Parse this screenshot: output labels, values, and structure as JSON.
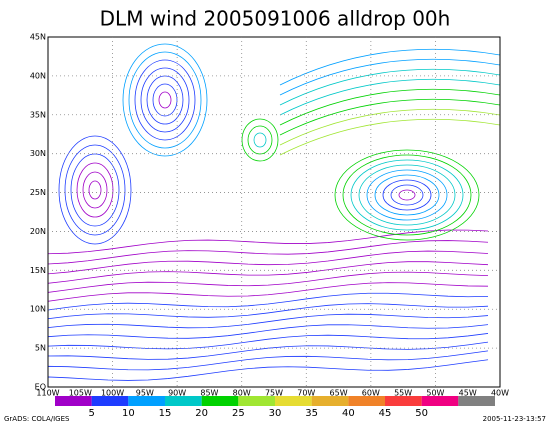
{
  "title": "DLM wind 2005091006 alldrop 00h",
  "map": {
    "lat_labels": [
      "EQ",
      "5N",
      "10N",
      "15N",
      "20N",
      "25N",
      "30N",
      "35N",
      "40N",
      "45N"
    ],
    "lon_labels": [
      "110W",
      "105W",
      "100W",
      "95W",
      "90W",
      "85W",
      "80W",
      "75W",
      "70W",
      "65W",
      "60W",
      "55W",
      "50W",
      "45W",
      "40W"
    ]
  },
  "colorbar": {
    "colors": [
      "#a000c8",
      "#1e3cff",
      "#00a0ff",
      "#00c8c8",
      "#00d200",
      "#a0e632",
      "#e6dc32",
      "#e6af2d",
      "#f08228",
      "#fa3c3c",
      "#f00082",
      "#808080"
    ],
    "labels": [
      5,
      10,
      15,
      20,
      25,
      30,
      35,
      40,
      45,
      50
    ]
  },
  "footer": {
    "left": "GrADS: COLA/IGES",
    "right": "2005-11-23-13:57"
  }
}
